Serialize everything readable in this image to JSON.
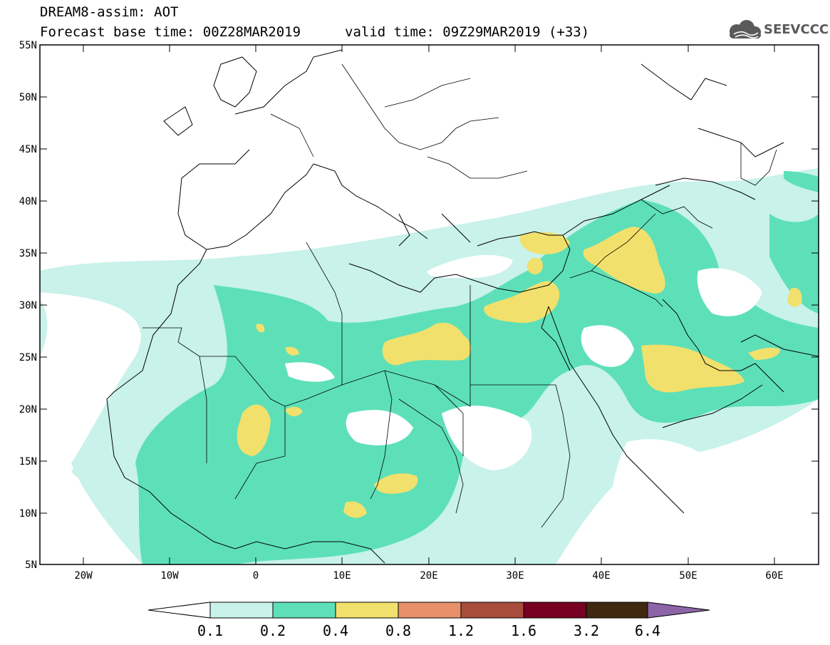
{
  "header": {
    "title": "DREAM8-assim: AOT",
    "base_time": "Forecast base time: 00Z28MAR2019",
    "valid_time": "valid time: 09Z29MAR2019 (+33)",
    "logo_text": "SEEVCCC"
  },
  "map": {
    "lon_range": [
      -25,
      65
    ],
    "lat_range": [
      5,
      55
    ],
    "lat_labels": [
      "55N",
      "50N",
      "45N",
      "40N",
      "35N",
      "30N",
      "25N",
      "20N",
      "15N",
      "10N",
      "5N"
    ],
    "lon_labels": [
      "20W",
      "10W",
      "0",
      "10E",
      "20E",
      "30E",
      "40E",
      "50E",
      "60E"
    ]
  },
  "colorbar": {
    "labels": [
      "0.1",
      "0.2",
      "0.4",
      "0.8",
      "1.2",
      "1.6",
      "3.2",
      "6.4"
    ],
    "colors": [
      "#c8f2ea",
      "#5de0b8",
      "#f2e06c",
      "#e8906a",
      "#a84c3c",
      "#780022",
      "#402810",
      "#8c64a8"
    ]
  }
}
